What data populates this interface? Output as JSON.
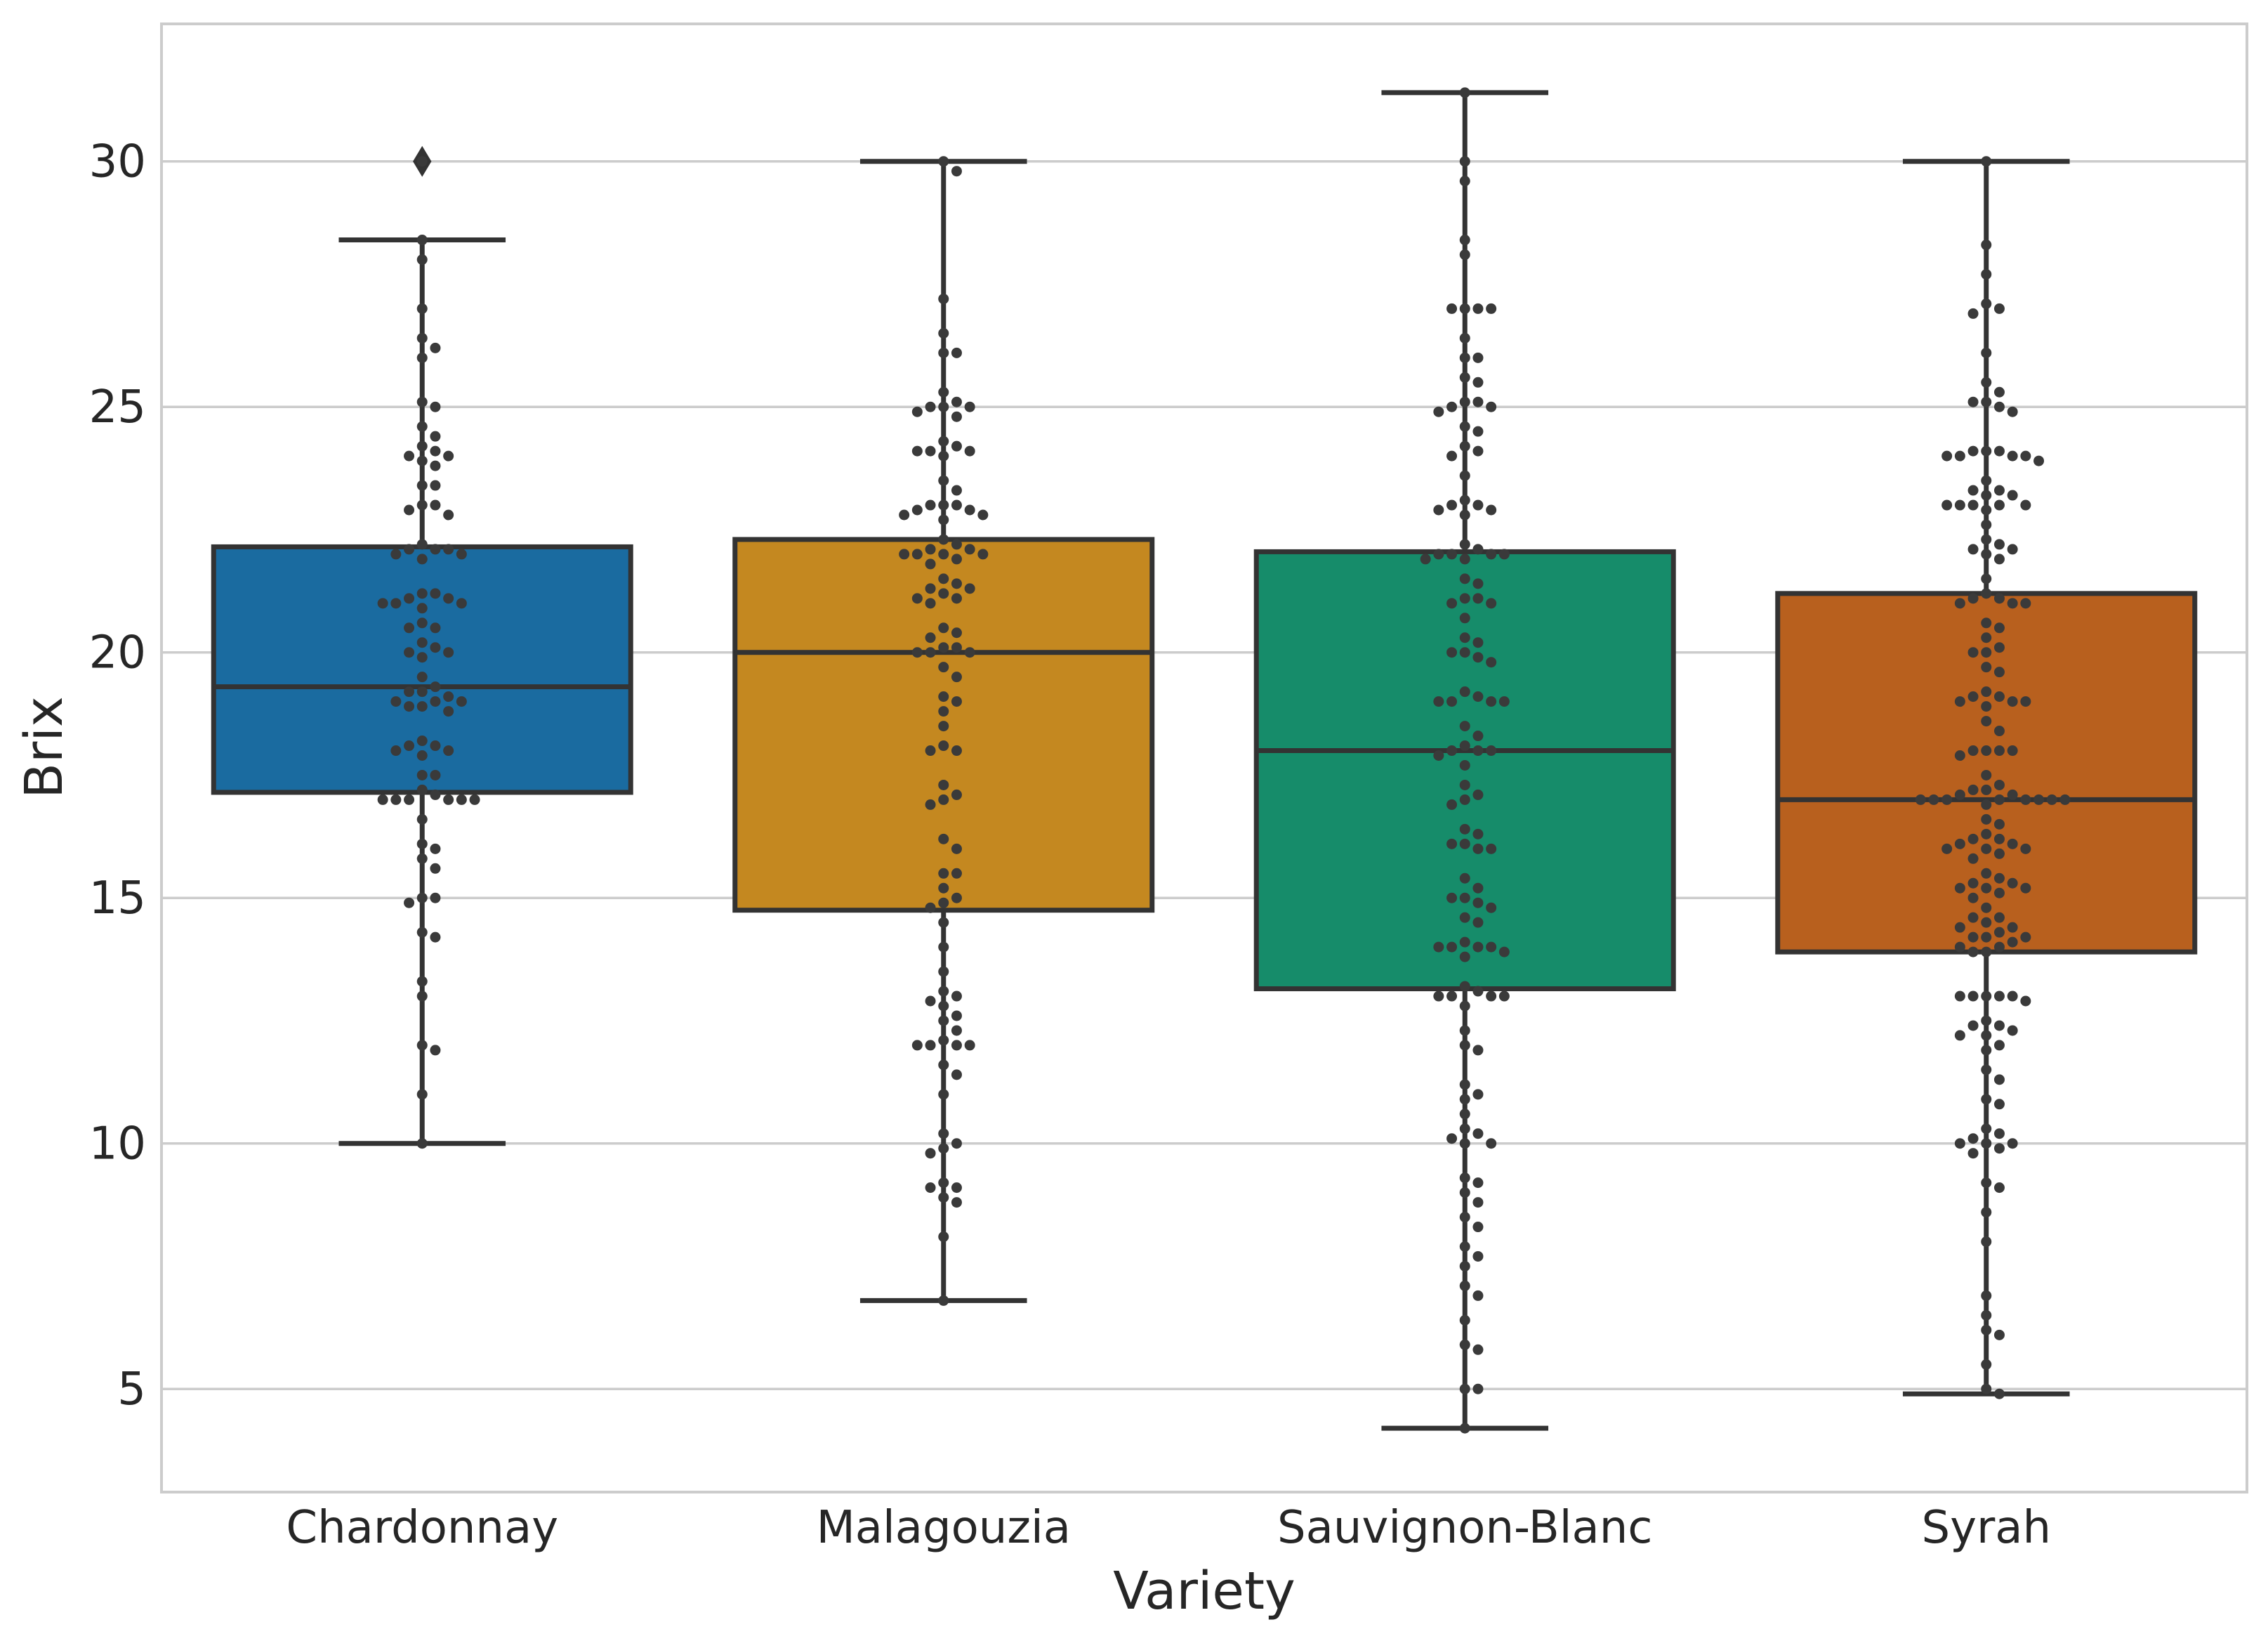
{
  "chart_data": {
    "type": "box",
    "overlay": "swarm",
    "title": "",
    "xlabel": "Variety",
    "ylabel": "Brix",
    "ylim": [
      2.9,
      32.8
    ],
    "yticks": [
      5,
      10,
      15,
      20,
      25,
      30
    ],
    "grid": "horizontal",
    "categories": [
      "Chardonnay",
      "Malagouzia",
      "Sauvignon-Blanc",
      "Syrah"
    ],
    "boxes": [
      {
        "name": "Chardonnay",
        "color": "#1a6ba0",
        "whisker_low": 10,
        "q1": 17.15,
        "median": 19.3,
        "q3": 22.15,
        "whisker_high": 28.4,
        "outliers": [
          30
        ]
      },
      {
        "name": "Malagouzia",
        "color": "#c48820",
        "whisker_low": 6.8,
        "q1": 14.75,
        "median": 20.0,
        "q3": 22.3,
        "whisker_high": 30,
        "outliers": []
      },
      {
        "name": "Sauvignon-Blanc",
        "color": "#168c6a",
        "whisker_low": 4.2,
        "q1": 13.15,
        "median": 18.0,
        "q3": 22.05,
        "whisker_high": 31.4,
        "outliers": []
      },
      {
        "name": "Syrah",
        "color": "#b8601e",
        "whisker_low": 4.9,
        "q1": 13.9,
        "median": 17.0,
        "q3": 21.2,
        "whisker_high": 30,
        "outliers": []
      }
    ],
    "points": [
      [
        30,
        28.4,
        28.0,
        27.0,
        26.4,
        26.2,
        26.0,
        25.1,
        25.0,
        24.6,
        24.4,
        24.2,
        24.1,
        24.0,
        24.0,
        23.9,
        23.8,
        23.4,
        23.4,
        23.0,
        23.0,
        22.9,
        22.8,
        22.2,
        22.1,
        22.1,
        22.1,
        22.0,
        22.0,
        21.9,
        21.2,
        21.2,
        21.1,
        21.1,
        21.0,
        21.0,
        21.0,
        20.9,
        20.6,
        20.5,
        20.5,
        20.2,
        20.1,
        20.0,
        20.0,
        19.9,
        19.5,
        19.3,
        19.2,
        19.2,
        19.1,
        19.0,
        19.0,
        19.0,
        18.9,
        18.9,
        18.8,
        18.2,
        18.1,
        18.1,
        18.0,
        18.0,
        17.9,
        17.5,
        17.5,
        17.2,
        17.1,
        17.0,
        17.0,
        17.0,
        17.0,
        17.0,
        17.0,
        16.6,
        16.1,
        16.0,
        15.8,
        15.6,
        15.0,
        15.0,
        14.9,
        14.3,
        14.2,
        13.3,
        13.0,
        12.0,
        11.9,
        11.0,
        10.0
      ],
      [
        30.0,
        29.8,
        27.2,
        26.5,
        26.1,
        26.1,
        25.3,
        25.1,
        25.0,
        25.0,
        25.0,
        24.9,
        24.8,
        24.3,
        24.2,
        24.1,
        24.1,
        24.1,
        24.0,
        23.5,
        23.3,
        23.0,
        23.0,
        23.0,
        22.9,
        22.9,
        22.8,
        22.8,
        22.7,
        22.3,
        22.2,
        22.1,
        22.1,
        22.0,
        22.0,
        22.0,
        22.0,
        21.9,
        21.8,
        21.5,
        21.4,
        21.3,
        21.3,
        21.2,
        21.1,
        21.1,
        21.0,
        20.5,
        20.4,
        20.3,
        20.1,
        20.1,
        20.0,
        20.0,
        20.0,
        19.7,
        19.5,
        19.1,
        19.0,
        18.8,
        18.5,
        18.1,
        18.0,
        18.0,
        17.3,
        17.1,
        17.0,
        16.9,
        16.2,
        16.0,
        15.5,
        15.5,
        15.2,
        15.0,
        14.9,
        14.8,
        14.5,
        14.0,
        13.5,
        13.1,
        13.0,
        12.9,
        12.8,
        12.6,
        12.5,
        12.3,
        12.1,
        12.0,
        12.0,
        12.0,
        12.0,
        11.6,
        11.4,
        11.0,
        10.2,
        10.0,
        9.9,
        9.8,
        9.2,
        9.1,
        9.1,
        8.9,
        8.8,
        8.1,
        6.8
      ],
      [
        31.4,
        30.0,
        29.6,
        28.4,
        28.1,
        27.0,
        27.0,
        27.0,
        27.0,
        26.4,
        26.0,
        26.0,
        25.6,
        25.5,
        25.1,
        25.1,
        25.0,
        25.0,
        24.9,
        24.6,
        24.5,
        24.2,
        24.1,
        24.0,
        23.6,
        23.1,
        23.0,
        23.0,
        22.9,
        22.9,
        22.8,
        22.2,
        22.1,
        22.0,
        22.0,
        22.0,
        22.0,
        21.9,
        21.9,
        21.5,
        21.4,
        21.1,
        21.1,
        21.0,
        21.0,
        20.7,
        20.3,
        20.2,
        20.0,
        20.0,
        19.9,
        19.8,
        19.2,
        19.1,
        19.0,
        19.0,
        19.0,
        19.0,
        18.5,
        18.3,
        18.1,
        18.0,
        18.0,
        18.0,
        17.9,
        17.7,
        17.3,
        17.1,
        17.0,
        16.9,
        16.4,
        16.3,
        16.1,
        16.1,
        16.0,
        16.0,
        15.4,
        15.2,
        15.0,
        15.0,
        14.9,
        14.8,
        14.6,
        14.5,
        14.1,
        14.0,
        14.0,
        14.0,
        14.0,
        13.9,
        13.8,
        13.2,
        13.1,
        13.0,
        13.0,
        13.0,
        13.0,
        12.8,
        12.3,
        12.0,
        11.9,
        11.2,
        11.0,
        10.9,
        10.6,
        10.3,
        10.2,
        10.1,
        10.0,
        10.0,
        9.3,
        9.2,
        9.0,
        8.8,
        8.5,
        8.3,
        7.9,
        7.7,
        7.5,
        7.1,
        6.9,
        6.4,
        5.9,
        5.8,
        5.0,
        5.0,
        4.2
      ],
      [
        30.0,
        28.3,
        27.7,
        27.1,
        27.0,
        26.9,
        26.1,
        25.5,
        25.3,
        25.1,
        25.1,
        25.0,
        24.9,
        24.1,
        24.1,
        24.1,
        24.0,
        24.0,
        24.0,
        24.0,
        23.9,
        23.5,
        23.3,
        23.3,
        23.2,
        23.2,
        23.0,
        23.0,
        23.0,
        23.0,
        23.0,
        22.9,
        22.6,
        22.3,
        22.2,
        22.1,
        22.1,
        22.0,
        21.9,
        21.5,
        21.2,
        21.1,
        21.1,
        21.0,
        21.0,
        21.0,
        20.6,
        20.5,
        20.3,
        20.1,
        20.0,
        20.0,
        19.7,
        19.6,
        19.2,
        19.1,
        19.1,
        19.0,
        19.0,
        19.0,
        18.9,
        18.6,
        18.4,
        18.0,
        18.0,
        18.0,
        18.0,
        17.9,
        17.5,
        17.3,
        17.2,
        17.2,
        17.1,
        17.1,
        17.0,
        17.0,
        17.0,
        17.0,
        17.0,
        17.0,
        17.0,
        17.0,
        16.9,
        16.6,
        16.5,
        16.3,
        16.2,
        16.2,
        16.1,
        16.1,
        16.0,
        16.0,
        16.0,
        15.9,
        15.8,
        15.5,
        15.4,
        15.3,
        15.3,
        15.2,
        15.2,
        15.2,
        15.1,
        15.0,
        14.8,
        14.6,
        14.6,
        14.5,
        14.4,
        14.4,
        14.3,
        14.2,
        14.2,
        14.2,
        14.1,
        14.0,
        14.0,
        13.9,
        13.9,
        13.0,
        13.0,
        13.0,
        13.0,
        13.0,
        12.9,
        12.5,
        12.4,
        12.4,
        12.3,
        12.2,
        12.2,
        12.0,
        11.9,
        11.5,
        11.3,
        10.9,
        10.8,
        10.3,
        10.2,
        10.1,
        10.0,
        10.0,
        10.0,
        9.9,
        9.8,
        9.2,
        9.1,
        8.6,
        8.0,
        6.9,
        6.5,
        6.2,
        6.1,
        5.5,
        5.0,
        4.9
      ]
    ]
  }
}
